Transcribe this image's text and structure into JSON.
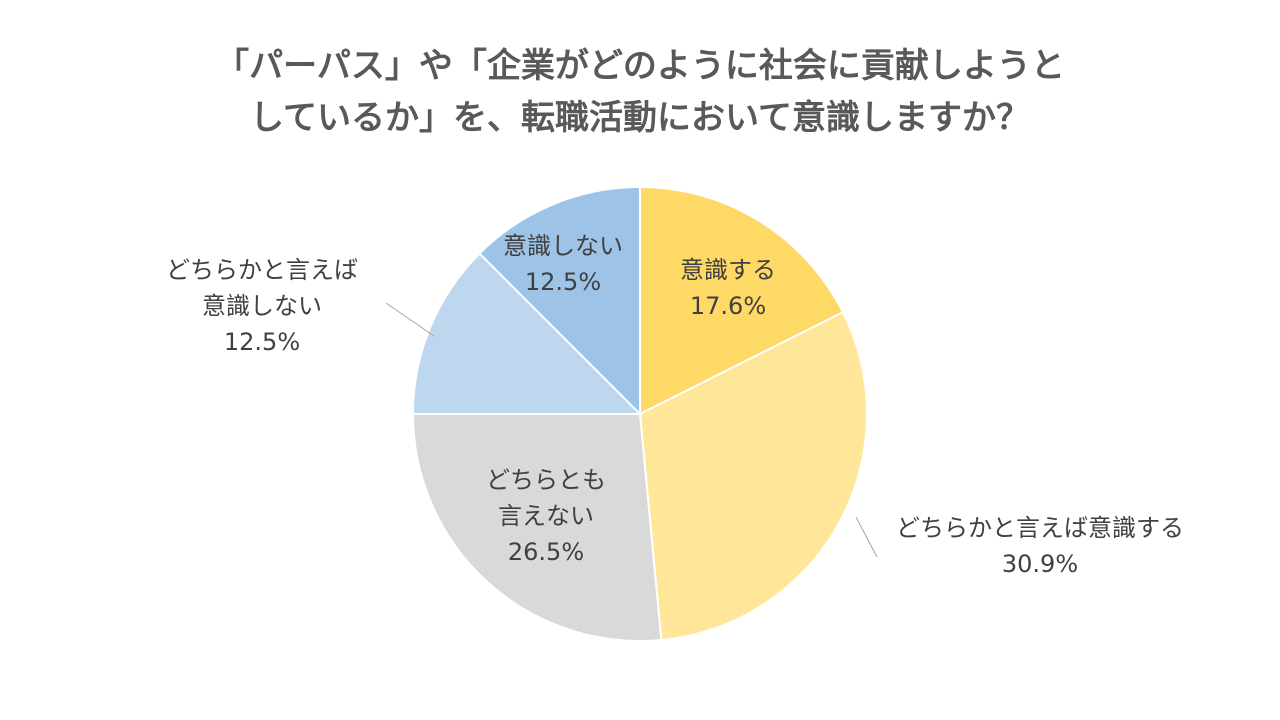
{
  "title": {
    "line1": "「パーパス」や「企業がどのように社会に貢献しようと",
    "line2": "しているか」を、転職活動において意識しますか？"
  },
  "chart_data": {
    "type": "pie",
    "title": "「パーパス」や「企業がどのように社会に貢献しようとしているか」を、転職活動において意識しますか？",
    "slices": [
      {
        "name": "意識する",
        "value": 17.6,
        "label": "17.6%",
        "color": "#FFD966"
      },
      {
        "name": "どちらかと言えば意識する",
        "value": 30.9,
        "label": "30.9%",
        "color": "#FFE699"
      },
      {
        "name": "どちらとも言えない",
        "value": 26.5,
        "label": "26.5%",
        "color": "#D9D9D9"
      },
      {
        "name": "どちらかと言えば意識しない",
        "value": 12.5,
        "label": "12.5%",
        "color": "#BDD7EE"
      },
      {
        "name": "意識しない",
        "value": 12.5,
        "label": "12.5%",
        "color": "#9DC3E6"
      }
    ],
    "start_angle": "12-o'clock",
    "direction": "clockwise",
    "legend": "none"
  }
}
